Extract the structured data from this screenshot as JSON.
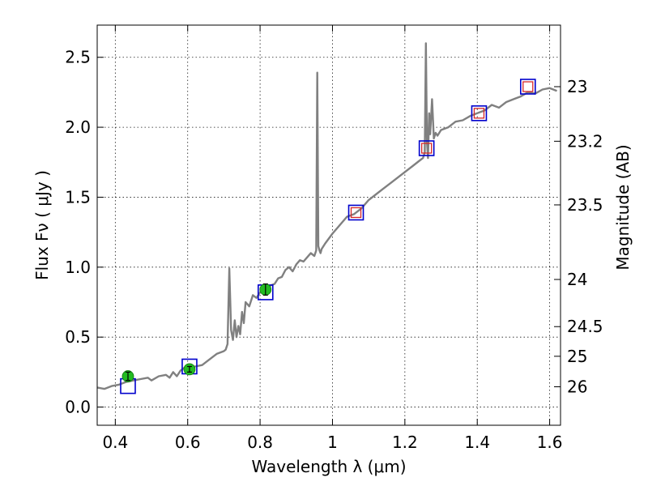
{
  "chart_data": {
    "type": "line",
    "title": "",
    "xlabel": "Wavelength  λ (μm)",
    "ylabel": "Flux  Fν  ( μJy )",
    "y2label": "Magnitude (AB)",
    "xlim": [
      0.35,
      1.63
    ],
    "ylim": [
      -0.13,
      2.73
    ],
    "grid": true,
    "x_ticks": [
      0.4,
      0.6,
      0.8,
      1.0,
      1.2,
      1.4,
      1.6
    ],
    "x_tick_labels": [
      "0.4",
      "0.6",
      "0.8",
      "1",
      "1.2",
      "1.4",
      "1.6"
    ],
    "y_ticks": [
      0.0,
      0.5,
      1.0,
      1.5,
      2.0,
      2.5
    ],
    "y_tick_labels": [
      "0.0",
      "0.5",
      "1.0",
      "1.5",
      "2.0",
      "2.5"
    ],
    "y2_ticks": [
      {
        "label": "23",
        "flux": 2.29
      },
      {
        "label": "23.2",
        "flux": 1.9
      },
      {
        "label": "23.5",
        "flux": 1.445
      },
      {
        "label": "24",
        "flux": 0.912
      },
      {
        "label": "24.5",
        "flux": 0.575
      },
      {
        "label": "25",
        "flux": 0.363
      },
      {
        "label": "26",
        "flux": 0.145
      }
    ],
    "series": [
      {
        "name": "model spectrum",
        "kind": "line",
        "color": "#808080",
        "x": [
          0.35,
          0.37,
          0.39,
          0.41,
          0.43,
          0.45,
          0.47,
          0.49,
          0.5,
          0.52,
          0.54,
          0.55,
          0.56,
          0.57,
          0.58,
          0.59,
          0.6,
          0.62,
          0.64,
          0.66,
          0.68,
          0.7,
          0.705,
          0.71,
          0.715,
          0.72,
          0.725,
          0.73,
          0.735,
          0.74,
          0.745,
          0.75,
          0.755,
          0.76,
          0.77,
          0.78,
          0.79,
          0.8,
          0.81,
          0.82,
          0.83,
          0.84,
          0.85,
          0.86,
          0.87,
          0.88,
          0.89,
          0.9,
          0.91,
          0.92,
          0.93,
          0.94,
          0.95,
          0.955,
          0.958,
          0.961,
          0.964,
          0.967,
          0.97,
          0.98,
          1.0,
          1.02,
          1.04,
          1.06,
          1.08,
          1.1,
          1.12,
          1.14,
          1.16,
          1.18,
          1.2,
          1.22,
          1.24,
          1.25,
          1.255,
          1.258,
          1.261,
          1.264,
          1.267,
          1.27,
          1.275,
          1.28,
          1.285,
          1.29,
          1.3,
          1.32,
          1.34,
          1.36,
          1.38,
          1.4,
          1.42,
          1.44,
          1.46,
          1.48,
          1.5,
          1.52,
          1.54,
          1.56,
          1.58,
          1.6,
          1.62
        ],
        "y": [
          0.14,
          0.13,
          0.15,
          0.16,
          0.18,
          0.19,
          0.2,
          0.21,
          0.19,
          0.22,
          0.23,
          0.21,
          0.25,
          0.22,
          0.26,
          0.28,
          0.27,
          0.29,
          0.3,
          0.34,
          0.38,
          0.4,
          0.41,
          0.45,
          0.99,
          0.55,
          0.48,
          0.62,
          0.5,
          0.58,
          0.52,
          0.68,
          0.6,
          0.75,
          0.72,
          0.8,
          0.78,
          0.82,
          0.84,
          0.86,
          0.87,
          0.88,
          0.92,
          0.93,
          0.98,
          1.0,
          0.97,
          1.02,
          1.05,
          1.04,
          1.07,
          1.1,
          1.08,
          1.12,
          2.39,
          1.15,
          1.12,
          1.1,
          1.13,
          1.17,
          1.24,
          1.3,
          1.36,
          1.38,
          1.42,
          1.48,
          1.52,
          1.56,
          1.6,
          1.64,
          1.68,
          1.72,
          1.76,
          1.78,
          1.82,
          2.6,
          1.9,
          1.78,
          2.1,
          1.95,
          2.2,
          1.92,
          1.96,
          1.94,
          1.98,
          2.0,
          2.04,
          2.05,
          2.08,
          2.1,
          2.12,
          2.16,
          2.14,
          2.18,
          2.2,
          2.22,
          2.25,
          2.24,
          2.27,
          2.28,
          2.26
        ]
      },
      {
        "name": "model photometry",
        "kind": "square",
        "color": "#0000cc",
        "x": [
          0.435,
          0.605,
          0.815,
          1.065,
          1.26,
          1.405,
          1.54
        ],
        "y": [
          0.15,
          0.29,
          0.82,
          1.39,
          1.85,
          2.1,
          2.29
        ]
      },
      {
        "name": "observed upper limits",
        "kind": "square",
        "color": "#d62728",
        "x": [
          1.065,
          1.26,
          1.405,
          1.54
        ],
        "y": [
          1.39,
          1.85,
          2.1,
          2.29
        ]
      },
      {
        "name": "observed photometry",
        "kind": "circle",
        "color": "#22bb22",
        "x": [
          0.435,
          0.605,
          0.815
        ],
        "y": [
          0.22,
          0.27,
          0.84
        ],
        "yerr": [
          0.03,
          0.02,
          0.04
        ]
      }
    ]
  }
}
